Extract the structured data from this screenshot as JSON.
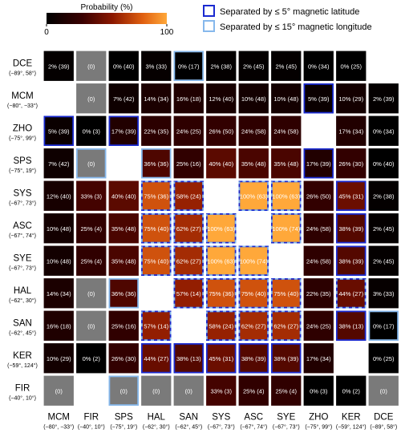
{
  "chart_data": {
    "type": "heatmap",
    "colorbar": {
      "label": "Probability (%)",
      "min_label": "0",
      "max_label": "100",
      "min": 0,
      "max": 100
    },
    "legend": {
      "placement": "top-right",
      "items": [
        {
          "label": "Separated by ≤ 5° magnetic latitude",
          "color": "#1a2ad0"
        },
        {
          "label": "Separated by ≤ 15° magnetic longitude",
          "color": "#86b8ec"
        }
      ]
    },
    "colors": {
      "na_cell": "#7a7a7a",
      "lat_border": "#1a2ad0",
      "lon_border": "#86b8ec"
    },
    "rows": [
      {
        "name": "DCE",
        "coords": "(−89°, 58°)"
      },
      {
        "name": "MCM",
        "coords": "(−80°, −33°)"
      },
      {
        "name": "ZHO",
        "coords": "(−75°, 99°)"
      },
      {
        "name": "SPS",
        "coords": "(−75°, 19°)"
      },
      {
        "name": "SYS",
        "coords": "(−67°, 73°)"
      },
      {
        "name": "ASC",
        "coords": "(−67°, 74°)"
      },
      {
        "name": "SYE",
        "coords": "(−67°, 73°)"
      },
      {
        "name": "HAL",
        "coords": "(−62°, 30°)"
      },
      {
        "name": "SAN",
        "coords": "(−62°, 45°)"
      },
      {
        "name": "KER",
        "coords": "(−59°, 124°)"
      },
      {
        "name": "FIR",
        "coords": "(−40°, 10°)"
      }
    ],
    "columns": [
      {
        "name": "MCM",
        "coords": "(−80°, −33°)"
      },
      {
        "name": "FIR",
        "coords": "(−40°, 10°)"
      },
      {
        "name": "SPS",
        "coords": "(−75°, 19°)"
      },
      {
        "name": "HAL",
        "coords": "(−62°, 30°)"
      },
      {
        "name": "SAN",
        "coords": "(−62°, 45°)"
      },
      {
        "name": "SYS",
        "coords": "(−67°, 73°)"
      },
      {
        "name": "ASC",
        "coords": "(−67°, 74°)"
      },
      {
        "name": "SYE",
        "coords": "(−67°, 73°)"
      },
      {
        "name": "ZHO",
        "coords": "(−75°, 99°)"
      },
      {
        "name": "KER",
        "coords": "(−59°, 124°)"
      },
      {
        "name": "DCE",
        "coords": "(−89°, 58°)"
      }
    ],
    "cells": [
      [
        {
          "label": "2% (39)",
          "p": 2
        },
        {
          "label": "(0)",
          "p": null
        },
        {
          "label": "0% (40)",
          "p": 0
        },
        {
          "label": "3% (33)",
          "p": 3
        },
        {
          "label": "0% (17)",
          "p": 0,
          "b": "lon"
        },
        {
          "label": "2% (38)",
          "p": 2
        },
        {
          "label": "2% (45)",
          "p": 2
        },
        {
          "label": "2% (45)",
          "p": 2
        },
        {
          "label": "0% (34)",
          "p": 0
        },
        {
          "label": "0% (25)",
          "p": 0
        },
        null
      ],
      [
        null,
        {
          "label": "(0)",
          "p": null
        },
        {
          "label": "7% (42)",
          "p": 7
        },
        {
          "label": "14% (34)",
          "p": 14
        },
        {
          "label": "16% (18)",
          "p": 16
        },
        {
          "label": "12% (40)",
          "p": 12
        },
        {
          "label": "10% (48)",
          "p": 10
        },
        {
          "label": "10% (48)",
          "p": 10
        },
        {
          "label": "5% (39)",
          "p": 5,
          "b": "lat"
        },
        {
          "label": "10% (29)",
          "p": 10
        },
        {
          "label": "2% (39)",
          "p": 2
        }
      ],
      [
        {
          "label": "5% (39)",
          "p": 5,
          "b": "lat"
        },
        {
          "label": "0% (3)",
          "p": 0
        },
        {
          "label": "17% (39)",
          "p": 17,
          "b": "lat"
        },
        {
          "label": "22% (35)",
          "p": 22
        },
        {
          "label": "24% (25)",
          "p": 24
        },
        {
          "label": "26% (50)",
          "p": 26
        },
        {
          "label": "24% (58)",
          "p": 24
        },
        {
          "label": "24% (58)",
          "p": 24
        },
        null,
        {
          "label": "17% (34)",
          "p": 17
        },
        {
          "label": "0% (34)",
          "p": 0
        }
      ],
      [
        {
          "label": "7% (42)",
          "p": 7
        },
        {
          "label": "(0)",
          "p": null,
          "b": "lon"
        },
        null,
        {
          "label": "36% (36)",
          "p": 36,
          "b": "lon"
        },
        {
          "label": "25% (16)",
          "p": 25
        },
        {
          "label": "40% (40)",
          "p": 40
        },
        {
          "label": "35% (48)",
          "p": 35
        },
        {
          "label": "35% (48)",
          "p": 35
        },
        {
          "label": "17% (39)",
          "p": 17,
          "b": "lat"
        },
        {
          "label": "26% (30)",
          "p": 26
        },
        {
          "label": "0% (40)",
          "p": 0
        }
      ],
      [
        {
          "label": "12% (40)",
          "p": 12
        },
        {
          "label": "33% (3)",
          "p": 33
        },
        {
          "label": "40% (40)",
          "p": 40
        },
        {
          "label": "75% (36)",
          "p": 75,
          "b": "both"
        },
        {
          "label": "58% (24)",
          "p": 58,
          "b": "both"
        },
        null,
        {
          "label": "100% (63)",
          "p": 100,
          "b": "both"
        },
        {
          "label": "100% (63)",
          "p": 100,
          "b": "both"
        },
        {
          "label": "26% (50)",
          "p": 26
        },
        {
          "label": "45% (31)",
          "p": 45,
          "b": "lat"
        },
        {
          "label": "2% (38)",
          "p": 2
        }
      ],
      [
        {
          "label": "10% (48)",
          "p": 10
        },
        {
          "label": "25% (4)",
          "p": 25
        },
        {
          "label": "35% (48)",
          "p": 35
        },
        {
          "label": "75% (40)",
          "p": 75,
          "b": "both"
        },
        {
          "label": "62% (27)",
          "p": 62,
          "b": "both"
        },
        {
          "label": "100% (63)",
          "p": 100,
          "b": "both"
        },
        null,
        {
          "label": "100% (74)",
          "p": 100,
          "b": "both"
        },
        {
          "label": "24% (58)",
          "p": 24
        },
        {
          "label": "38% (39)",
          "p": 38,
          "b": "lat"
        },
        {
          "label": "2% (45)",
          "p": 2
        }
      ],
      [
        {
          "label": "10% (48)",
          "p": 10
        },
        {
          "label": "25% (4)",
          "p": 25
        },
        {
          "label": "35% (48)",
          "p": 35
        },
        {
          "label": "75% (40)",
          "p": 75,
          "b": "both"
        },
        {
          "label": "62% (27)",
          "p": 62,
          "b": "both"
        },
        {
          "label": "100% (63)",
          "p": 100,
          "b": "both"
        },
        {
          "label": "100% (74)",
          "p": 100,
          "b": "both"
        },
        null,
        {
          "label": "24% (58)",
          "p": 24
        },
        {
          "label": "38% (39)",
          "p": 38,
          "b": "lat"
        },
        {
          "label": "2% (45)",
          "p": 2
        }
      ],
      [
        {
          "label": "14% (34)",
          "p": 14
        },
        {
          "label": "(0)",
          "p": null
        },
        {
          "label": "36% (36)",
          "p": 36,
          "b": "lon"
        },
        null,
        {
          "label": "57% (14)",
          "p": 57,
          "b": "both"
        },
        {
          "label": "75% (36)",
          "p": 75,
          "b": "both"
        },
        {
          "label": "75% (40)",
          "p": 75,
          "b": "both"
        },
        {
          "label": "75% (40)",
          "p": 75,
          "b": "both"
        },
        {
          "label": "22% (35)",
          "p": 22
        },
        {
          "label": "44% (27)",
          "p": 44,
          "b": "both"
        },
        {
          "label": "3% (33)",
          "p": 3
        }
      ],
      [
        {
          "label": "16% (18)",
          "p": 16
        },
        {
          "label": "(0)",
          "p": null
        },
        {
          "label": "25% (16)",
          "p": 25
        },
        {
          "label": "57% (14)",
          "p": 57,
          "b": "both"
        },
        null,
        {
          "label": "58% (24)",
          "p": 58,
          "b": "both"
        },
        {
          "label": "62% (27)",
          "p": 62,
          "b": "both"
        },
        {
          "label": "62% (27)",
          "p": 62,
          "b": "both"
        },
        {
          "label": "24% (25)",
          "p": 24
        },
        {
          "label": "38% (13)",
          "p": 38,
          "b": "lat"
        },
        {
          "label": "0% (17)",
          "p": 0,
          "b": "lon"
        }
      ],
      [
        {
          "label": "10% (29)",
          "p": 10
        },
        {
          "label": "0% (2)",
          "p": 0
        },
        {
          "label": "26% (30)",
          "p": 26
        },
        {
          "label": "44% (27)",
          "p": 44,
          "b": "lat"
        },
        {
          "label": "38% (13)",
          "p": 38,
          "b": "lat"
        },
        {
          "label": "45% (31)",
          "p": 45,
          "b": "lat"
        },
        {
          "label": "38% (39)",
          "p": 38,
          "b": "lat"
        },
        {
          "label": "38% (39)",
          "p": 38,
          "b": "lat"
        },
        {
          "label": "17% (34)",
          "p": 17
        },
        null,
        {
          "label": "0% (25)",
          "p": 0
        }
      ],
      [
        {
          "label": "(0)",
          "p": null
        },
        null,
        {
          "label": "(0)",
          "p": null,
          "b": "lon"
        },
        {
          "label": "(0)",
          "p": null
        },
        {
          "label": "(0)",
          "p": null
        },
        {
          "label": "33% (3)",
          "p": 33
        },
        {
          "label": "25% (4)",
          "p": 25
        },
        {
          "label": "25% (4)",
          "p": 25
        },
        {
          "label": "0% (3)",
          "p": 0
        },
        {
          "label": "0% (2)",
          "p": 0
        },
        {
          "label": "(0)",
          "p": null
        }
      ]
    ]
  }
}
